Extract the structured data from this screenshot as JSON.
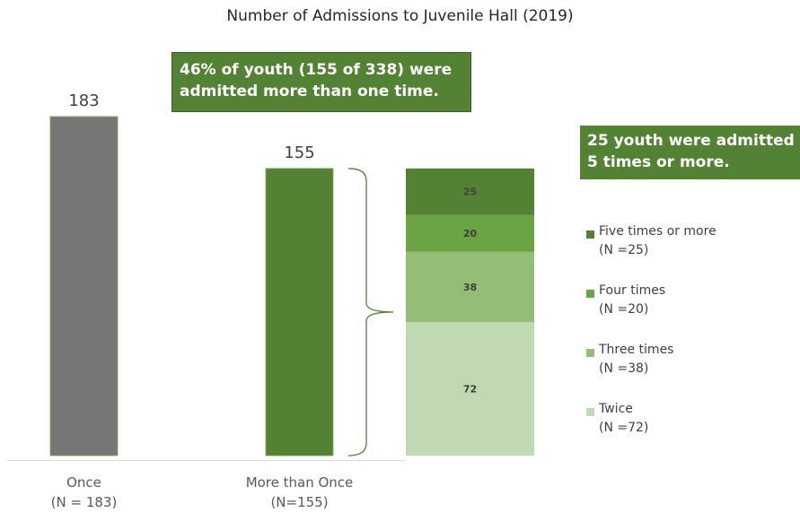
{
  "title": "Number of Admissions to Juvenile Hall (2019)",
  "callouts": {
    "main_line1": "46% of youth (155 of 338) were",
    "main_line2": "admitted more than one time.",
    "five_line1": "25 youth were admitted",
    "five_line2": "5 times or more."
  },
  "colors": {
    "once": "#767676",
    "more_than_once": "#548235",
    "five_plus": "#548235",
    "four": "#6aa443",
    "three": "#94bd78",
    "twice": "#c1d9b3",
    "callout_bg": "#548235",
    "brace": "#548235"
  },
  "chart_data": {
    "type": "bar",
    "title": "Number of Admissions to Juvenile Hall (2019)",
    "bars": [
      {
        "category": "Once",
        "sublabel": "(N = 183)",
        "value": 183,
        "value_label": "183"
      },
      {
        "category": "More than Once",
        "sublabel": "(N=155)",
        "value": 155,
        "value_label": "155"
      }
    ],
    "breakdown": {
      "type": "stacked_bar",
      "segments": [
        {
          "name": "Twice",
          "value": 72,
          "value_label": "72",
          "legend_n": "(N =72)"
        },
        {
          "name": "Three times",
          "value": 38,
          "value_label": "38",
          "legend_n": "(N =38)"
        },
        {
          "name": "Four times",
          "value": 20,
          "value_label": "20",
          "legend_n": "(N =20)"
        },
        {
          "name": "Five times or more",
          "value": 25,
          "value_label": "25",
          "legend_n": "(N =25)"
        }
      ]
    },
    "legend": [
      {
        "label": "Five times or more",
        "count": "(N =25)",
        "color": "#548235"
      },
      {
        "label": "Four times",
        "count": "(N =20)",
        "color": "#6aa443"
      },
      {
        "label": "Three times",
        "count": "(N =38)",
        "color": "#94bd78"
      },
      {
        "label": "Twice",
        "count": "(N =72)",
        "color": "#c1d9b3"
      }
    ],
    "ylim": [
      0,
      183
    ],
    "grid": false,
    "legend_position": "right"
  }
}
